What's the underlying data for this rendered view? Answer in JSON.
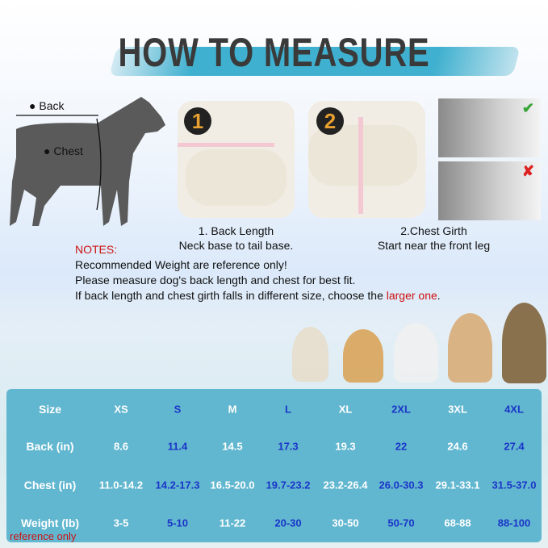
{
  "title": "HOW TO MEASURE",
  "diagram": {
    "back_label": "Back",
    "chest_label": "Chest",
    "back_num": "1",
    "chest_num": "2"
  },
  "steps": [
    {
      "num": "1",
      "caption_line1": "1. Back Length",
      "caption_line2": "Neck base to tail base."
    },
    {
      "num": "2",
      "caption_line1": "2.Chest Girth",
      "caption_line2": "Start near the front leg"
    }
  ],
  "check_icons": {
    "correct": "check-icon",
    "wrong": "cross-icon"
  },
  "notes": {
    "heading": "NOTES:",
    "lines": [
      "Recommended Weight are reference only!",
      "Please measure dog's back length and chest for best fit."
    ],
    "line3_prefix": "If back length and chest girth falls in different size, choose the ",
    "line3_highlight": "larger one",
    "line3_suffix": "."
  },
  "size_table": {
    "row_labels": [
      "Size",
      "Back  (in)",
      "Chest  (in)",
      "Weight  (lb)"
    ],
    "sizes": [
      "XS",
      "S",
      "M",
      "L",
      "XL",
      "2XL",
      "3XL",
      "4XL"
    ],
    "back": [
      "8.6",
      "11.4",
      "14.5",
      "17.3",
      "19.3",
      "22",
      "24.6",
      "27.4"
    ],
    "chest": [
      "11.0-14.2",
      "14.2-17.3",
      "16.5-20.0",
      "19.7-23.2",
      "23.2-26.4",
      "26.0-30.3",
      "29.1-33.1",
      "31.5-37.0"
    ],
    "weight": [
      "3-5",
      "5-10",
      "11-22",
      "20-30",
      "30-50",
      "50-70",
      "68-88",
      "88-100"
    ],
    "footnote": "reference only"
  },
  "colors": {
    "table_bg": "#62b7d0",
    "alt_text": "#1a35c8",
    "red": "#cc1111",
    "accent": "#3fb0cf"
  }
}
